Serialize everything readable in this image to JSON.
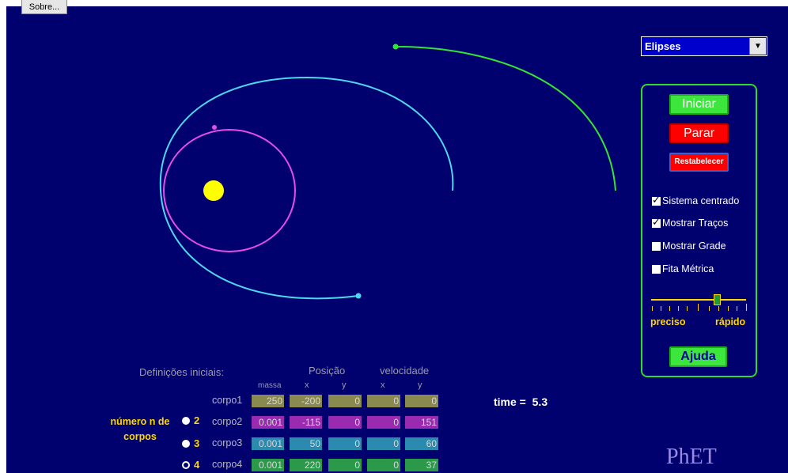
{
  "app": {
    "about_button": "Sobre...",
    "logo": "PhET"
  },
  "preset": {
    "selected": "Elipses"
  },
  "controls": {
    "start": "Iniciar",
    "stop": "Parar",
    "reset": "Restabelecer",
    "help": "Ajuda",
    "checkboxes": [
      {
        "label": "Sistema centrado",
        "checked": true
      },
      {
        "label": "Mostrar Traços",
        "checked": true
      },
      {
        "label": "Mostrar Grade",
        "checked": false
      },
      {
        "label": "Fita Métrica",
        "checked": false
      }
    ],
    "speed": {
      "left_label": "preciso",
      "right_label": "rápido",
      "value_fraction": 0.7
    }
  },
  "table": {
    "title": "Definições iniciais:",
    "position_header": "Posição",
    "velocity_header": "velocidade",
    "col_massa": "massa",
    "col_x": "x",
    "col_y": "y",
    "rows": [
      {
        "label": "corpo1",
        "massa": "250",
        "px": "-200",
        "py": "0",
        "vx": "0",
        "vy": "0"
      },
      {
        "label": "corpo2",
        "massa": "0.001",
        "px": "-115",
        "py": "0",
        "vx": "0",
        "vy": "151"
      },
      {
        "label": "corpo3",
        "massa": "0.001",
        "px": "50",
        "py": "0",
        "vx": "0",
        "vy": "60"
      },
      {
        "label": "corpo4",
        "massa": "0.001",
        "px": "220",
        "py": "0",
        "vx": "0",
        "vy": "37"
      }
    ]
  },
  "bodies_selector": {
    "label_line1": "número n de",
    "label_line2": "corpos",
    "options": [
      "2",
      "3",
      "4"
    ],
    "selected": "4"
  },
  "time": {
    "label": "time =",
    "value": "5.3"
  },
  "colors": {
    "background": "#00006e",
    "sun": "#ffff00",
    "orbit_magenta": "#e84de8",
    "orbit_cyan": "#4dd8f0",
    "orbit_green": "#33e633",
    "panel_border": "#2ddc2d"
  }
}
